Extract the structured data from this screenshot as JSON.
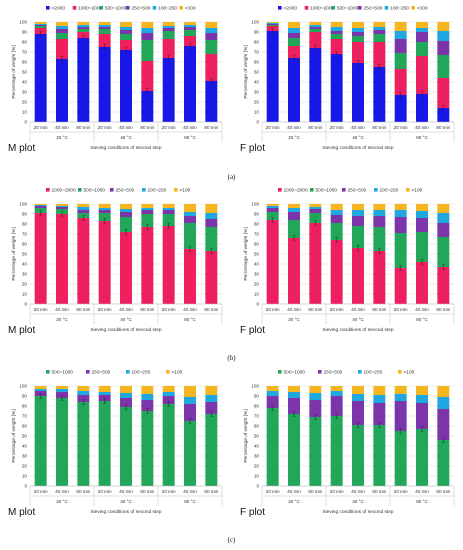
{
  "row_labels": [
    "(a)",
    "(b)",
    "(c)"
  ],
  "chart_data": [
    {
      "type": "bar",
      "stacked": true,
      "panel": "M plot",
      "row": 0,
      "col": 0,
      "plot_label": "M plot",
      "ylabel": "Percentage of weight [%]",
      "xlabel": "Sieving conditions of second step",
      "ylim": [
        0,
        100
      ],
      "yticks": [
        0,
        10,
        20,
        30,
        40,
        50,
        60,
        70,
        80,
        90,
        100
      ],
      "categories": [
        "20 min",
        "40 min",
        "80 min",
        "20 min",
        "40 min",
        "80 min",
        "20 min",
        "40 min",
        "80 min"
      ],
      "groups": [
        "20 °C",
        "40 °C",
        "80 °C"
      ],
      "legend_position": "top",
      "series": [
        {
          "name": ">2000",
          "color": "#1717e8",
          "values": [
            88,
            63,
            84,
            75,
            72,
            31,
            64,
            76,
            41
          ]
        },
        {
          "name": "1000~2000",
          "color": "#ee1f5f",
          "values": [
            6,
            20,
            6,
            13,
            10,
            30,
            19,
            10,
            27
          ]
        },
        {
          "name": "500~1000",
          "color": "#21a65a",
          "values": [
            2,
            6,
            3,
            5,
            6,
            21,
            8,
            6,
            14
          ]
        },
        {
          "name": "250~500",
          "color": "#7b35a8",
          "values": [
            1,
            4,
            2,
            2,
            4,
            7,
            3,
            3,
            7
          ]
        },
        {
          "name": "100~250",
          "color": "#1fa8e0",
          "values": [
            1,
            3,
            2,
            2,
            3,
            5,
            2,
            2,
            5
          ]
        },
        {
          "name": "<100",
          "color": "#f5b51f",
          "values": [
            2,
            4,
            3,
            3,
            5,
            6,
            4,
            3,
            6
          ]
        }
      ]
    },
    {
      "type": "bar",
      "stacked": true,
      "panel": "F plot",
      "row": 0,
      "col": 1,
      "plot_label": "F plot",
      "ylabel": "Percentage of weight [%]",
      "xlabel": "Sieving conditions of second step",
      "ylim": [
        0,
        100
      ],
      "yticks": [
        0,
        10,
        20,
        30,
        40,
        50,
        60,
        70,
        80,
        90,
        100
      ],
      "categories": [
        "20 min",
        "40 min",
        "80 min",
        "20 min",
        "40 min",
        "80 min",
        "20 min",
        "40 min",
        "80 min"
      ],
      "groups": [
        "20 °C",
        "40 °C",
        "80 °C"
      ],
      "legend_position": "top",
      "series": [
        {
          "name": ">2000",
          "color": "#1717e8",
          "values": [
            91,
            64,
            74,
            68,
            59,
            55,
            27,
            28,
            14
          ]
        },
        {
          "name": "1000~2000",
          "color": "#ee1f5f",
          "values": [
            5,
            12,
            16,
            15,
            21,
            25,
            26,
            38,
            30
          ]
        },
        {
          "name": "500~1000",
          "color": "#21a65a",
          "values": [
            1,
            8,
            3,
            5,
            6,
            8,
            16,
            14,
            23
          ]
        },
        {
          "name": "250~500",
          "color": "#7b35a8",
          "values": [
            1,
            5,
            2,
            3,
            4,
            4,
            14,
            10,
            14
          ]
        },
        {
          "name": "100~250",
          "color": "#1fa8e0",
          "values": [
            1,
            5,
            2,
            4,
            4,
            3,
            8,
            4,
            10
          ]
        },
        {
          "name": "<100",
          "color": "#f5b51f",
          "values": [
            1,
            6,
            3,
            5,
            6,
            5,
            9,
            6,
            9
          ]
        }
      ]
    },
    {
      "type": "bar",
      "stacked": true,
      "panel": "M plot",
      "row": 1,
      "col": 0,
      "plot_label": "M plot",
      "ylabel": "Percentage of weight [%]",
      "xlabel": "Sieving conditions of second step",
      "ylim": [
        0,
        100
      ],
      "yticks": [
        0,
        10,
        20,
        30,
        40,
        50,
        60,
        70,
        80,
        90,
        100
      ],
      "categories": [
        "20 min",
        "40 min",
        "80 min",
        "20 min",
        "40 min",
        "80 min",
        "20 min",
        "40 min",
        "80 min"
      ],
      "groups": [
        "20 °C",
        "40 °C",
        "80 °C"
      ],
      "legend_position": "top",
      "series": [
        {
          "name": "1000~2000",
          "color": "#ee1f5f",
          "values": [
            91,
            90,
            86,
            83,
            72,
            77,
            78,
            55,
            53
          ]
        },
        {
          "name": "500~1000",
          "color": "#21a65a",
          "values": [
            5,
            5,
            5,
            8,
            15,
            13,
            12,
            26,
            24
          ]
        },
        {
          "name": "250~500",
          "color": "#7b35a8",
          "values": [
            2,
            2,
            3,
            3,
            5,
            4,
            4,
            7,
            8
          ]
        },
        {
          "name": "100~250",
          "color": "#1fa8e0",
          "values": [
            1,
            1,
            3,
            2,
            3,
            2,
            2,
            4,
            6
          ]
        },
        {
          "name": "<100",
          "color": "#f5b51f",
          "values": [
            1,
            2,
            3,
            4,
            5,
            4,
            4,
            8,
            9
          ]
        }
      ]
    },
    {
      "type": "bar",
      "stacked": true,
      "panel": "F plot",
      "row": 1,
      "col": 1,
      "plot_label": "F plot",
      "ylabel": "Percentage of weight [%]",
      "xlabel": "Sieving conditions of second step",
      "ylim": [
        0,
        100
      ],
      "yticks": [
        0,
        10,
        20,
        30,
        40,
        50,
        60,
        70,
        80,
        90,
        100
      ],
      "categories": [
        "20 min",
        "40 min",
        "80 min",
        "20 min",
        "40 min",
        "80 min",
        "20 min",
        "40 min",
        "80 min"
      ],
      "groups": [
        "20 °C",
        "40 °C",
        "80 °C"
      ],
      "legend_position": "top",
      "series": [
        {
          "name": "1000~2000",
          "color": "#ee1f5f",
          "values": [
            84,
            66,
            81,
            64,
            56,
            53,
            36,
            42,
            37
          ]
        },
        {
          "name": "500~1000",
          "color": "#21a65a",
          "values": [
            8,
            18,
            10,
            17,
            22,
            24,
            35,
            30,
            30
          ]
        },
        {
          "name": "250~500",
          "color": "#7b35a8",
          "values": [
            4,
            8,
            4,
            8,
            10,
            11,
            16,
            14,
            14
          ]
        },
        {
          "name": "100~250",
          "color": "#1fa8e0",
          "values": [
            2,
            4,
            2,
            5,
            6,
            6,
            7,
            7,
            10
          ]
        },
        {
          "name": "<100",
          "color": "#f5b51f",
          "values": [
            2,
            4,
            3,
            6,
            6,
            6,
            6,
            7,
            9
          ]
        }
      ]
    },
    {
      "type": "bar",
      "stacked": true,
      "panel": "M plot",
      "row": 2,
      "col": 0,
      "plot_label": "M plot",
      "ylabel": "Percentage of weight [%]",
      "xlabel": "Sieving conditions of second step",
      "ylim": [
        0,
        100
      ],
      "yticks": [
        0,
        10,
        20,
        30,
        40,
        50,
        60,
        70,
        80,
        90,
        100
      ],
      "categories": [
        "20 min",
        "40 min",
        "80 min",
        "20 min",
        "40 min",
        "80 min",
        "20 min",
        "40 min",
        "80 min"
      ],
      "groups": [
        "20 °C",
        "40 °C",
        "80 °C"
      ],
      "legend_position": "top",
      "series": [
        {
          "name": "500~1000",
          "color": "#21a65a",
          "values": [
            90,
            88,
            84,
            85,
            79,
            75,
            82,
            65,
            72
          ]
        },
        {
          "name": "250~500",
          "color": "#7b35a8",
          "values": [
            5,
            6,
            7,
            6,
            9,
            11,
            8,
            17,
            12
          ]
        },
        {
          "name": "100~250",
          "color": "#1fa8e0",
          "values": [
            2,
            3,
            4,
            3,
            5,
            6,
            4,
            7,
            7
          ]
        },
        {
          "name": "<100",
          "color": "#f5b51f",
          "values": [
            3,
            3,
            5,
            6,
            7,
            8,
            6,
            11,
            9
          ]
        }
      ]
    },
    {
      "type": "bar",
      "stacked": true,
      "panel": "F plot",
      "row": 2,
      "col": 1,
      "plot_label": "F plot",
      "ylabel": "Percentage of weight [%]",
      "xlabel": "Sieving conditions of second step",
      "ylim": [
        0,
        100
      ],
      "yticks": [
        0,
        10,
        20,
        30,
        40,
        50,
        60,
        70,
        80,
        90,
        100
      ],
      "categories": [
        "20 min",
        "40 min",
        "80 min",
        "20 min",
        "40 min",
        "80 min",
        "20 min",
        "40 min",
        "80 min"
      ],
      "groups": [
        "20 °C",
        "40 °C",
        "80 °C"
      ],
      "legend_position": "top",
      "series": [
        {
          "name": "500~1000",
          "color": "#21a65a",
          "values": [
            78,
            72,
            69,
            70,
            61,
            61,
            55,
            57,
            46
          ]
        },
        {
          "name": "250~500",
          "color": "#7b35a8",
          "values": [
            12,
            16,
            17,
            20,
            24,
            22,
            30,
            26,
            31
          ]
        },
        {
          "name": "100~250",
          "color": "#1fa8e0",
          "values": [
            5,
            6,
            7,
            5,
            7,
            8,
            7,
            8,
            12
          ]
        },
        {
          "name": "<100",
          "color": "#f5b51f",
          "values": [
            5,
            6,
            7,
            5,
            8,
            9,
            8,
            9,
            11
          ]
        }
      ]
    }
  ]
}
